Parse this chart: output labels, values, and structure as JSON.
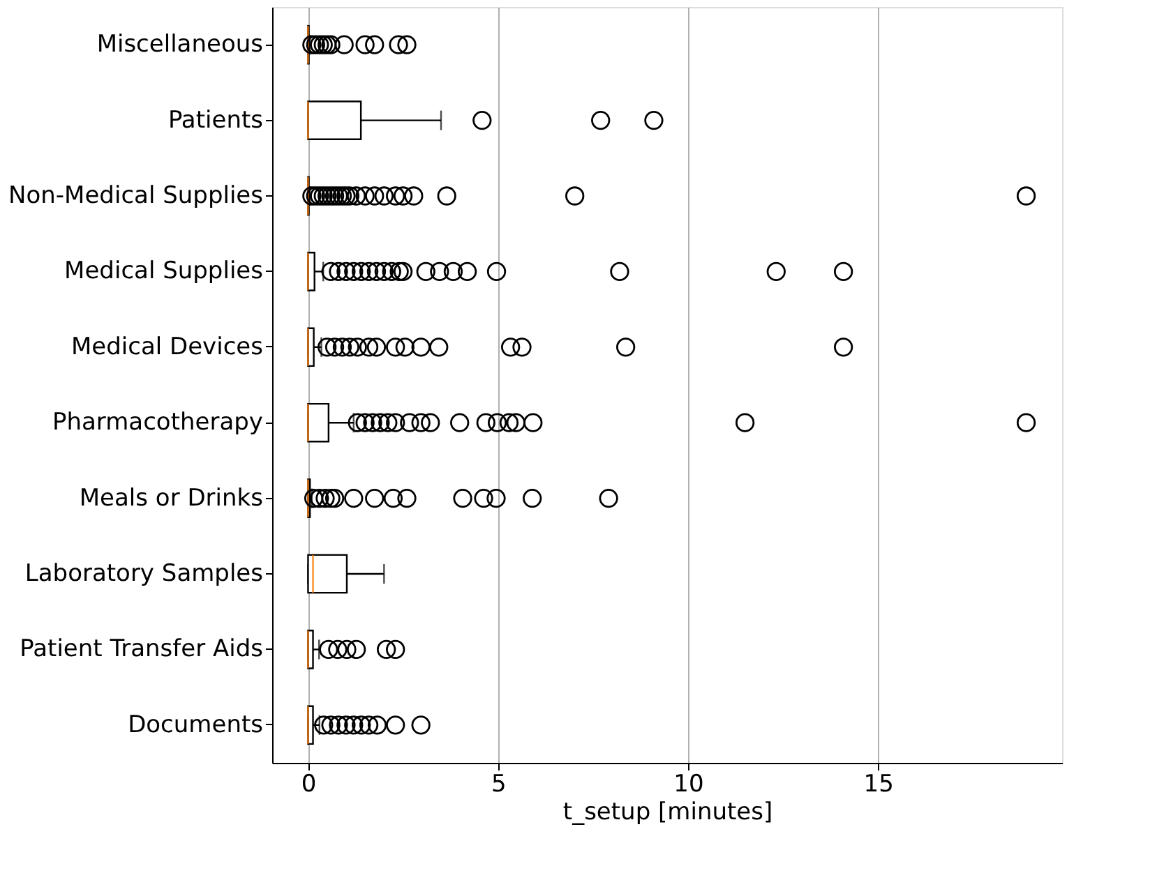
{
  "chart_data": {
    "type": "box",
    "xlabel": "t_setup [minutes]",
    "orientation": "horizontal",
    "categories": [
      "Miscellaneous",
      "Patients",
      "Non-Medical Supplies",
      "Medical Supplies",
      "Medical Devices",
      "Pharmacotherapy",
      "Meals or Drinks",
      "Laboratory Samples",
      "Patient Transfer Aids",
      "Documents"
    ],
    "boxes": [
      {
        "low": 0,
        "q1": 0,
        "median": 0,
        "q3": 0.02,
        "high": 0.05,
        "outliers": [
          0.1,
          0.2,
          0.3,
          0.4,
          0.5,
          0.6,
          0.95,
          1.5,
          1.75,
          2.38,
          2.6
        ]
      },
      {
        "low": 0,
        "q1": 0,
        "median": 0,
        "q3": 1.39,
        "high": 3.5,
        "outliers": [
          4.58,
          7.7,
          9.1
        ]
      },
      {
        "low": 0,
        "q1": 0,
        "median": 0,
        "q3": 0.02,
        "high": 0.05,
        "outliers": [
          0.1,
          0.2,
          0.3,
          0.4,
          0.5,
          0.6,
          0.7,
          0.8,
          0.9,
          1.0,
          1.1,
          1.27,
          1.5,
          1.75,
          2.0,
          2.3,
          2.5,
          2.78,
          3.65,
          7.02,
          18.9
        ]
      },
      {
        "low": 0,
        "q1": 0,
        "median": 0,
        "q3": 0.17,
        "high": 0.4,
        "outliers": [
          0.6,
          0.8,
          1.0,
          1.2,
          1.4,
          1.6,
          1.8,
          2.0,
          2.2,
          2.4,
          2.5,
          3.1,
          3.46,
          3.82,
          4.19,
          4.96,
          8.2,
          12.32,
          14.09
        ]
      },
      {
        "low": 0,
        "q1": 0,
        "median": 0,
        "q3": 0.15,
        "high": 0.35,
        "outliers": [
          0.5,
          0.7,
          0.9,
          1.1,
          1.3,
          1.6,
          1.8,
          2.3,
          2.55,
          2.97,
          3.44,
          5.33,
          5.63,
          8.36,
          14.09
        ]
      },
      {
        "low": 0,
        "q1": 0,
        "median": 0,
        "q3": 0.54,
        "high": 1.2,
        "outliers": [
          1.3,
          1.5,
          1.7,
          1.9,
          2.1,
          2.3,
          2.67,
          2.97,
          3.22,
          3.99,
          4.68,
          4.98,
          5.29,
          5.47,
          5.92,
          11.5,
          18.9
        ]
      },
      {
        "low": 0,
        "q1": 0,
        "median": 0,
        "q3": 0.05,
        "high": 0.1,
        "outliers": [
          0.15,
          0.3,
          0.45,
          0.6,
          0.7,
          1.2,
          1.75,
          2.24,
          2.6,
          4.07,
          4.62,
          4.95,
          5.9,
          7.91
        ]
      },
      {
        "low": 0,
        "q1": 0,
        "median": 0.13,
        "q3": 1.02,
        "high": 2.0
      },
      {
        "low": 0,
        "q1": 0,
        "median": 0,
        "q3": 0.13,
        "high": 0.29,
        "outliers": [
          0.54,
          0.78,
          1.02,
          1.27,
          2.06,
          2.3
        ]
      },
      {
        "low": 0,
        "q1": 0,
        "median": 0,
        "q3": 0.13,
        "high": 0.3,
        "outliers": [
          0.41,
          0.6,
          0.8,
          1.0,
          1.2,
          1.4,
          1.6,
          1.82,
          2.3,
          2.97
        ]
      }
    ],
    "xlim": [
      -0.945,
      19.845
    ],
    "xticks": [
      0,
      5,
      10,
      15
    ],
    "grid": "x"
  }
}
